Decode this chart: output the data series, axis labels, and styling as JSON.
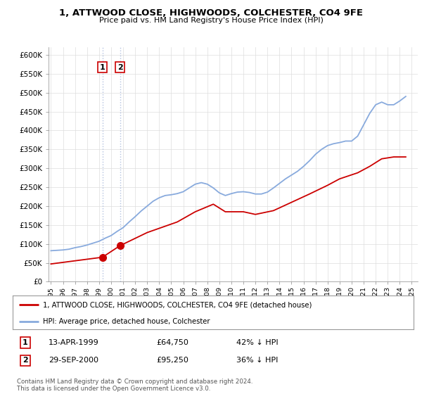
{
  "title": "1, ATTWOOD CLOSE, HIGHWOODS, COLCHESTER, CO4 9FE",
  "subtitle": "Price paid vs. HM Land Registry's House Price Index (HPI)",
  "ylim": [
    0,
    620000
  ],
  "yticks": [
    0,
    50000,
    100000,
    150000,
    200000,
    250000,
    300000,
    350000,
    400000,
    450000,
    500000,
    550000,
    600000
  ],
  "ytick_labels": [
    "£0",
    "£50K",
    "£100K",
    "£150K",
    "£200K",
    "£250K",
    "£300K",
    "£350K",
    "£400K",
    "£450K",
    "£500K",
    "£550K",
    "£600K"
  ],
  "xlim_start": 1994.8,
  "xlim_end": 2025.5,
  "transaction1": {
    "year": 1999.28,
    "price": 64750,
    "label": "1"
  },
  "transaction2": {
    "year": 2000.74,
    "price": 95250,
    "label": "2"
  },
  "legend_line1": "1, ATTWOOD CLOSE, HIGHWOODS, COLCHESTER, CO4 9FE (detached house)",
  "legend_line2": "HPI: Average price, detached house, Colchester",
  "table_rows": [
    {
      "num": "1",
      "date": "13-APR-1999",
      "price": "£64,750",
      "change": "42% ↓ HPI"
    },
    {
      "num": "2",
      "date": "29-SEP-2000",
      "price": "£95,250",
      "change": "36% ↓ HPI"
    }
  ],
  "footnote": "Contains HM Land Registry data © Crown copyright and database right 2024.\nThis data is licensed under the Open Government Licence v3.0.",
  "line_color_red": "#cc0000",
  "line_color_blue": "#88aadd",
  "vline_color": "#aabbdd",
  "marker_color_red": "#cc0000",
  "background_color": "#ffffff",
  "grid_color": "#dddddd",
  "hpi_years": [
    1995.0,
    1995.5,
    1996.0,
    1996.5,
    1997.0,
    1997.5,
    1998.0,
    1998.5,
    1999.0,
    1999.5,
    2000.0,
    2000.5,
    2001.0,
    2001.5,
    2002.0,
    2002.5,
    2003.0,
    2003.5,
    2004.0,
    2004.5,
    2005.0,
    2005.5,
    2006.0,
    2006.5,
    2007.0,
    2007.5,
    2008.0,
    2008.5,
    2009.0,
    2009.5,
    2010.0,
    2010.5,
    2011.0,
    2011.5,
    2012.0,
    2012.5,
    2013.0,
    2013.5,
    2014.0,
    2014.5,
    2015.0,
    2015.5,
    2016.0,
    2016.5,
    2017.0,
    2017.5,
    2018.0,
    2018.5,
    2019.0,
    2019.5,
    2020.0,
    2020.5,
    2021.0,
    2021.5,
    2022.0,
    2022.5,
    2023.0,
    2023.5,
    2024.0,
    2024.5
  ],
  "hpi_values": [
    82000,
    83000,
    84000,
    86000,
    90000,
    93000,
    97000,
    102000,
    107000,
    115000,
    122000,
    133000,
    143000,
    158000,
    172000,
    187000,
    200000,
    213000,
    222000,
    228000,
    230000,
    233000,
    238000,
    248000,
    258000,
    262000,
    258000,
    248000,
    235000,
    228000,
    233000,
    237000,
    238000,
    236000,
    232000,
    232000,
    237000,
    248000,
    260000,
    272000,
    282000,
    292000,
    305000,
    320000,
    337000,
    350000,
    360000,
    365000,
    368000,
    372000,
    372000,
    385000,
    415000,
    445000,
    468000,
    475000,
    468000,
    468000,
    478000,
    490000
  ],
  "price_years": [
    1995.0,
    1999.28,
    2000.74,
    2003.0,
    2005.5,
    2007.0,
    2008.5,
    2009.5,
    2011.0,
    2012.0,
    2013.5,
    2015.0,
    2016.5,
    2018.0,
    2019.0,
    2020.5,
    2021.5,
    2022.5,
    2023.5,
    2024.5
  ],
  "price_values": [
    47000,
    64750,
    95250,
    130000,
    158000,
    185000,
    205000,
    185000,
    185000,
    178000,
    188000,
    210000,
    232000,
    255000,
    272000,
    288000,
    305000,
    325000,
    330000,
    330000
  ]
}
